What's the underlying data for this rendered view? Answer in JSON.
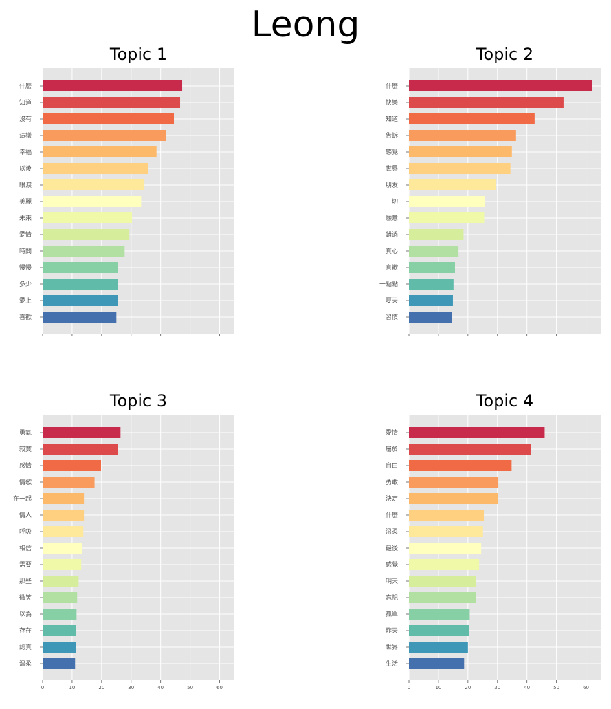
{
  "suptitle": "Leong",
  "colors": [
    "#c72a4a",
    "#dd4a4c",
    "#f06b45",
    "#f99b5c",
    "#fdb96a",
    "#fed07f",
    "#fee89a",
    "#ffffbe",
    "#f0f9a8",
    "#d6ee9b",
    "#b2e0a2",
    "#87cfa4",
    "#60bba8",
    "#3f97b7",
    "#4470ae"
  ],
  "chart_data": [
    {
      "type": "bar",
      "orientation": "horizontal",
      "title": "Topic 1",
      "categories": [
        "什麼",
        "知道",
        "沒有",
        "這樣",
        "幸福",
        "以後",
        "眼淚",
        "美麗",
        "未來",
        "愛情",
        "時間",
        "慢慢",
        "多少",
        "愛上",
        "喜歡"
      ],
      "values": [
        47.3,
        46.6,
        44.5,
        41.8,
        38.6,
        35.8,
        34.5,
        33.4,
        30.3,
        29.4,
        27.8,
        25.5,
        25.5,
        25.5,
        25.0
      ],
      "xlim": [
        0,
        65
      ],
      "xticks": [],
      "grid": true
    },
    {
      "type": "bar",
      "orientation": "horizontal",
      "title": "Topic 2",
      "categories": [
        "什麼",
        "快樂",
        "知道",
        "告訴",
        "感覺",
        "世界",
        "朋友",
        "一切",
        "願意",
        "錯過",
        "真心",
        "喜歡",
        "一點點",
        "夏天",
        "習慣"
      ],
      "values": [
        62.2,
        52.4,
        42.6,
        36.3,
        34.9,
        34.4,
        29.4,
        25.8,
        25.5,
        18.5,
        16.8,
        15.6,
        15.1,
        14.9,
        14.6
      ],
      "xlim": [
        0,
        65
      ],
      "xticks": [],
      "grid": true
    },
    {
      "type": "bar",
      "orientation": "horizontal",
      "title": "Topic 3",
      "categories": [
        "勇氣",
        "寂寞",
        "感情",
        "情歌",
        "在一起",
        "情人",
        "呼吸",
        "相信",
        "需要",
        "那些",
        "微笑",
        "以為",
        "存在",
        "認真",
        "溫柔"
      ],
      "values": [
        26.4,
        25.6,
        19.8,
        17.6,
        14.0,
        14.0,
        13.8,
        13.4,
        13.1,
        12.2,
        11.7,
        11.5,
        11.3,
        11.2,
        11.0
      ],
      "xlim": [
        0,
        65
      ],
      "xticks": [
        "0",
        "10",
        "20",
        "30",
        "40",
        "50",
        "60"
      ],
      "grid": true
    },
    {
      "type": "bar",
      "orientation": "horizontal",
      "title": "Topic 4",
      "categories": [
        "愛情",
        "屬於",
        "自由",
        "勇敢",
        "決定",
        "什麼",
        "溫柔",
        "最後",
        "感覺",
        "明天",
        "忘記",
        "孤單",
        "昨天",
        "世界",
        "生活"
      ],
      "values": [
        46.0,
        41.4,
        34.8,
        30.3,
        30.1,
        25.4,
        25.1,
        24.5,
        23.8,
        22.8,
        22.6,
        20.6,
        20.3,
        20.0,
        18.7
      ],
      "xlim": [
        0,
        65
      ],
      "xticks": [
        "0",
        "10",
        "20",
        "30",
        "40",
        "50",
        "60"
      ],
      "grid": true
    }
  ]
}
